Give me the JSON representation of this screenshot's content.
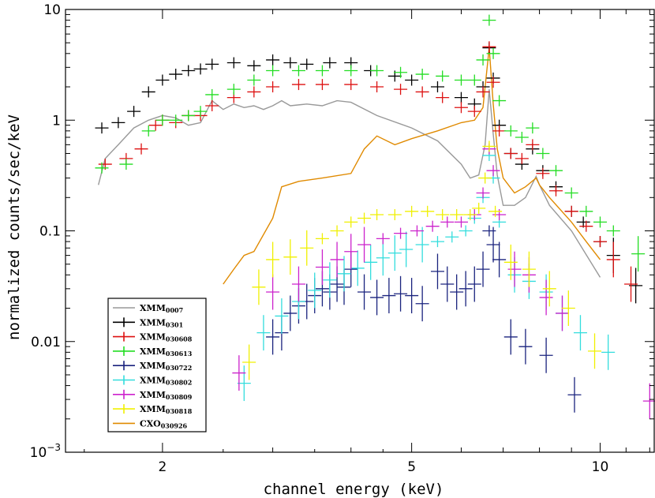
{
  "chart_data": {
    "type": "scatter",
    "xlabel": "channel energy (keV)",
    "ylabel": "normalized counts/sec/keV",
    "xscale": "log",
    "yscale": "log",
    "xlim": [
      1.4,
      12.2
    ],
    "ylim": [
      0.001,
      10
    ],
    "x_ticks": [
      {
        "value": 2,
        "label": "2"
      },
      {
        "value": 5,
        "label": "5"
      },
      {
        "value": 10,
        "label": "10"
      }
    ],
    "y_ticks": [
      {
        "value": 0.001,
        "base": "10",
        "exp": "−3"
      },
      {
        "value": 0.01,
        "label": "0.01"
      },
      {
        "value": 0.1,
        "label": "0.1"
      },
      {
        "value": 1,
        "label": "1"
      },
      {
        "value": 10,
        "label": "10"
      }
    ],
    "legend": [
      {
        "main": "XMM",
        "sub": "0007",
        "color": "#999999",
        "style": "line"
      },
      {
        "main": "XMM",
        "sub": "0301",
        "color": "#000000",
        "style": "cross"
      },
      {
        "main": "XMM",
        "sub": "030608",
        "color": "#dd1111",
        "style": "cross"
      },
      {
        "main": "XMM",
        "sub": "030613",
        "color": "#22dd22",
        "style": "cross"
      },
      {
        "main": "XMM",
        "sub": "030722",
        "color": "#1a237e",
        "style": "cross"
      },
      {
        "main": "XMM",
        "sub": "030802",
        "color": "#33dddd",
        "style": "cross"
      },
      {
        "main": "XMM",
        "sub": "030809",
        "color": "#cc22cc",
        "style": "cross"
      },
      {
        "main": "XMM",
        "sub": "030818",
        "color": "#f0f000",
        "style": "cross"
      },
      {
        "main": "CXO",
        "sub": "030926",
        "color": "#e08a00",
        "style": "line"
      }
    ],
    "series": [
      {
        "name": "XMM0007",
        "color": "#999999",
        "style": "line",
        "points": [
          [
            1.58,
            0.26
          ],
          [
            1.62,
            0.45
          ],
          [
            1.7,
            0.6
          ],
          [
            1.8,
            0.85
          ],
          [
            1.9,
            1.0
          ],
          [
            2.0,
            1.1
          ],
          [
            2.1,
            1.05
          ],
          [
            2.2,
            0.9
          ],
          [
            2.3,
            0.95
          ],
          [
            2.4,
            1.5
          ],
          [
            2.5,
            1.25
          ],
          [
            2.6,
            1.4
          ],
          [
            2.7,
            1.3
          ],
          [
            2.8,
            1.35
          ],
          [
            2.9,
            1.25
          ],
          [
            3.0,
            1.35
          ],
          [
            3.1,
            1.5
          ],
          [
            3.2,
            1.35
          ],
          [
            3.4,
            1.4
          ],
          [
            3.6,
            1.35
          ],
          [
            3.8,
            1.5
          ],
          [
            4.0,
            1.45
          ],
          [
            4.4,
            1.1
          ],
          [
            5.0,
            0.85
          ],
          [
            5.5,
            0.65
          ],
          [
            6.0,
            0.4
          ],
          [
            6.2,
            0.3
          ],
          [
            6.4,
            0.32
          ],
          [
            6.55,
            0.6
          ],
          [
            6.65,
            1.9
          ],
          [
            6.75,
            0.75
          ],
          [
            6.85,
            0.32
          ],
          [
            7.0,
            0.17
          ],
          [
            7.3,
            0.17
          ],
          [
            7.6,
            0.2
          ],
          [
            7.9,
            0.31
          ],
          [
            8.0,
            0.26
          ],
          [
            8.3,
            0.17
          ],
          [
            9.0,
            0.1
          ],
          [
            10.0,
            0.038
          ]
        ]
      },
      {
        "name": "CXO030926",
        "color": "#e08a00",
        "style": "line",
        "points": [
          [
            2.5,
            0.033
          ],
          [
            2.6,
            0.045
          ],
          [
            2.7,
            0.06
          ],
          [
            2.8,
            0.065
          ],
          [
            3.0,
            0.13
          ],
          [
            3.1,
            0.25
          ],
          [
            3.3,
            0.28
          ],
          [
            3.6,
            0.3
          ],
          [
            4.0,
            0.33
          ],
          [
            4.2,
            0.55
          ],
          [
            4.4,
            0.72
          ],
          [
            4.7,
            0.6
          ],
          [
            5.0,
            0.68
          ],
          [
            5.5,
            0.8
          ],
          [
            6.0,
            0.95
          ],
          [
            6.3,
            1.0
          ],
          [
            6.5,
            1.3
          ],
          [
            6.65,
            4.5
          ],
          [
            6.75,
            1.4
          ],
          [
            6.85,
            0.55
          ],
          [
            7.0,
            0.3
          ],
          [
            7.3,
            0.22
          ],
          [
            7.6,
            0.25
          ],
          [
            7.9,
            0.3
          ],
          [
            8.0,
            0.26
          ],
          [
            8.3,
            0.2
          ],
          [
            9.0,
            0.12
          ],
          [
            9.5,
            0.08
          ],
          [
            10.0,
            0.055
          ]
        ]
      },
      {
        "name": "XMM0301",
        "color": "#000000",
        "style": "cross",
        "points": [
          [
            1.6,
            0.85
          ],
          [
            1.7,
            0.95
          ],
          [
            1.8,
            1.2
          ],
          [
            1.9,
            1.8
          ],
          [
            2.0,
            2.3
          ],
          [
            2.1,
            2.6
          ],
          [
            2.2,
            2.8
          ],
          [
            2.3,
            2.9
          ],
          [
            2.4,
            3.2
          ],
          [
            2.6,
            3.3
          ],
          [
            2.8,
            3.1
          ],
          [
            3.0,
            3.5
          ],
          [
            3.2,
            3.3
          ],
          [
            3.4,
            3.2
          ],
          [
            3.7,
            3.3
          ],
          [
            4.0,
            3.3
          ],
          [
            4.3,
            2.8
          ],
          [
            4.7,
            2.5
          ],
          [
            5.0,
            2.3
          ],
          [
            5.5,
            2.0
          ],
          [
            6.0,
            1.6
          ],
          [
            6.3,
            1.4
          ],
          [
            6.5,
            2.0
          ],
          [
            6.65,
            4.5
          ],
          [
            6.75,
            2.4
          ],
          [
            6.9,
            0.9
          ],
          [
            7.2,
            0.5
          ],
          [
            7.5,
            0.4
          ],
          [
            7.8,
            0.55
          ],
          [
            8.1,
            0.35
          ],
          [
            8.5,
            0.25
          ],
          [
            9.0,
            0.15
          ],
          [
            9.4,
            0.12
          ],
          [
            10.0,
            0.08
          ],
          [
            10.5,
            0.06
          ],
          [
            11.4,
            0.032
          ]
        ]
      },
      {
        "name": "XMM030608",
        "color": "#dd1111",
        "style": "cross",
        "points": [
          [
            1.62,
            0.4
          ],
          [
            1.75,
            0.45
          ],
          [
            1.85,
            0.55
          ],
          [
            1.95,
            0.9
          ],
          [
            2.0,
            1.0
          ],
          [
            2.1,
            0.95
          ],
          [
            2.2,
            1.1
          ],
          [
            2.3,
            1.1
          ],
          [
            2.4,
            1.35
          ],
          [
            2.6,
            1.6
          ],
          [
            2.8,
            1.8
          ],
          [
            3.0,
            2.0
          ],
          [
            3.3,
            2.1
          ],
          [
            3.6,
            2.1
          ],
          [
            4.0,
            2.1
          ],
          [
            4.4,
            2.0
          ],
          [
            4.8,
            1.9
          ],
          [
            5.2,
            1.8
          ],
          [
            5.6,
            1.6
          ],
          [
            6.0,
            1.3
          ],
          [
            6.3,
            1.2
          ],
          [
            6.5,
            1.8
          ],
          [
            6.65,
            4.6
          ],
          [
            6.75,
            2.2
          ],
          [
            6.9,
            0.8
          ],
          [
            7.2,
            0.5
          ],
          [
            7.5,
            0.45
          ],
          [
            7.8,
            0.6
          ],
          [
            8.1,
            0.33
          ],
          [
            8.5,
            0.23
          ],
          [
            9.0,
            0.15
          ],
          [
            9.5,
            0.11
          ],
          [
            10.0,
            0.08
          ],
          [
            10.5,
            0.055
          ],
          [
            11.2,
            0.033
          ]
        ]
      },
      {
        "name": "XMM030613",
        "color": "#22dd22",
        "style": "cross",
        "points": [
          [
            1.6,
            0.37
          ],
          [
            1.75,
            0.4
          ],
          [
            1.9,
            0.8
          ],
          [
            2.0,
            1.0
          ],
          [
            2.1,
            1.0
          ],
          [
            2.2,
            1.1
          ],
          [
            2.3,
            1.2
          ],
          [
            2.4,
            1.7
          ],
          [
            2.6,
            1.9
          ],
          [
            2.8,
            2.3
          ],
          [
            3.0,
            2.8
          ],
          [
            3.3,
            2.8
          ],
          [
            3.6,
            2.8
          ],
          [
            4.0,
            2.8
          ],
          [
            4.4,
            2.8
          ],
          [
            4.8,
            2.7
          ],
          [
            5.2,
            2.6
          ],
          [
            5.6,
            2.5
          ],
          [
            6.0,
            2.3
          ],
          [
            6.3,
            2.3
          ],
          [
            6.5,
            3.5
          ],
          [
            6.65,
            8.0
          ],
          [
            6.75,
            4.0
          ],
          [
            6.9,
            1.5
          ],
          [
            7.2,
            0.8
          ],
          [
            7.5,
            0.7
          ],
          [
            7.8,
            0.85
          ],
          [
            8.1,
            0.5
          ],
          [
            8.5,
            0.35
          ],
          [
            9.0,
            0.22
          ],
          [
            9.5,
            0.15
          ],
          [
            10.0,
            0.12
          ],
          [
            10.5,
            0.1
          ],
          [
            11.5,
            0.062
          ]
        ]
      },
      {
        "name": "XMM030722",
        "color": "#1a237e",
        "style": "cross",
        "points": [
          [
            3.0,
            0.011
          ],
          [
            3.1,
            0.012
          ],
          [
            3.2,
            0.018
          ],
          [
            3.3,
            0.021
          ],
          [
            3.4,
            0.023
          ],
          [
            3.5,
            0.026
          ],
          [
            3.6,
            0.03
          ],
          [
            3.7,
            0.028
          ],
          [
            3.8,
            0.033
          ],
          [
            3.9,
            0.031
          ],
          [
            4.0,
            0.045
          ],
          [
            4.2,
            0.028
          ],
          [
            4.4,
            0.025
          ],
          [
            4.6,
            0.026
          ],
          [
            4.8,
            0.027
          ],
          [
            5.0,
            0.026
          ],
          [
            5.2,
            0.022
          ],
          [
            5.5,
            0.043
          ],
          [
            5.7,
            0.033
          ],
          [
            5.9,
            0.028
          ],
          [
            6.1,
            0.03
          ],
          [
            6.3,
            0.033
          ],
          [
            6.5,
            0.045
          ],
          [
            6.65,
            0.1
          ],
          [
            6.75,
            0.075
          ],
          [
            6.9,
            0.055
          ],
          [
            7.2,
            0.011
          ],
          [
            7.6,
            0.009
          ],
          [
            8.2,
            0.0075
          ],
          [
            9.1,
            0.0033
          ]
        ]
      },
      {
        "name": "XMM030802",
        "color": "#33dddd",
        "style": "cross",
        "points": [
          [
            2.7,
            0.0042
          ],
          [
            2.9,
            0.012
          ],
          [
            3.1,
            0.017
          ],
          [
            3.3,
            0.023
          ],
          [
            3.5,
            0.029
          ],
          [
            3.7,
            0.036
          ],
          [
            3.9,
            0.041
          ],
          [
            4.1,
            0.046
          ],
          [
            4.3,
            0.052
          ],
          [
            4.5,
            0.057
          ],
          [
            4.7,
            0.063
          ],
          [
            4.9,
            0.068
          ],
          [
            5.2,
            0.075
          ],
          [
            5.5,
            0.08
          ],
          [
            5.8,
            0.088
          ],
          [
            6.1,
            0.1
          ],
          [
            6.3,
            0.13
          ],
          [
            6.5,
            0.2
          ],
          [
            6.65,
            0.48
          ],
          [
            6.75,
            0.3
          ],
          [
            6.9,
            0.12
          ],
          [
            7.3,
            0.04
          ],
          [
            7.7,
            0.035
          ],
          [
            8.2,
            0.028
          ],
          [
            8.7,
            0.018
          ],
          [
            9.3,
            0.012
          ],
          [
            10.3,
            0.008
          ]
        ]
      },
      {
        "name": "XMM030809",
        "color": "#cc22cc",
        "style": "cross",
        "points": [
          [
            2.65,
            0.0052
          ],
          [
            3.0,
            0.028
          ],
          [
            3.3,
            0.033
          ],
          [
            3.6,
            0.047
          ],
          [
            3.8,
            0.055
          ],
          [
            4.0,
            0.065
          ],
          [
            4.2,
            0.075
          ],
          [
            4.5,
            0.085
          ],
          [
            4.8,
            0.095
          ],
          [
            5.1,
            0.1
          ],
          [
            5.4,
            0.11
          ],
          [
            5.7,
            0.12
          ],
          [
            6.0,
            0.12
          ],
          [
            6.3,
            0.14
          ],
          [
            6.5,
            0.22
          ],
          [
            6.65,
            0.55
          ],
          [
            6.75,
            0.35
          ],
          [
            6.9,
            0.14
          ],
          [
            7.3,
            0.045
          ],
          [
            7.7,
            0.04
          ],
          [
            8.2,
            0.025
          ],
          [
            8.7,
            0.018
          ],
          [
            12.0,
            0.0029
          ]
        ]
      },
      {
        "name": "XMM030818",
        "color": "#f0f000",
        "style": "cross",
        "points": [
          [
            2.75,
            0.0065
          ],
          [
            2.85,
            0.031
          ],
          [
            3.0,
            0.055
          ],
          [
            3.2,
            0.058
          ],
          [
            3.4,
            0.07
          ],
          [
            3.6,
            0.085
          ],
          [
            3.8,
            0.1
          ],
          [
            4.0,
            0.12
          ],
          [
            4.2,
            0.13
          ],
          [
            4.4,
            0.14
          ],
          [
            4.7,
            0.14
          ],
          [
            5.0,
            0.15
          ],
          [
            5.3,
            0.15
          ],
          [
            5.6,
            0.14
          ],
          [
            5.9,
            0.14
          ],
          [
            6.2,
            0.14
          ],
          [
            6.4,
            0.16
          ],
          [
            6.55,
            0.3
          ],
          [
            6.65,
            0.58
          ],
          [
            6.8,
            0.15
          ],
          [
            7.2,
            0.052
          ],
          [
            7.7,
            0.045
          ],
          [
            8.3,
            0.03
          ],
          [
            8.9,
            0.02
          ],
          [
            9.8,
            0.0082
          ]
        ]
      }
    ]
  }
}
